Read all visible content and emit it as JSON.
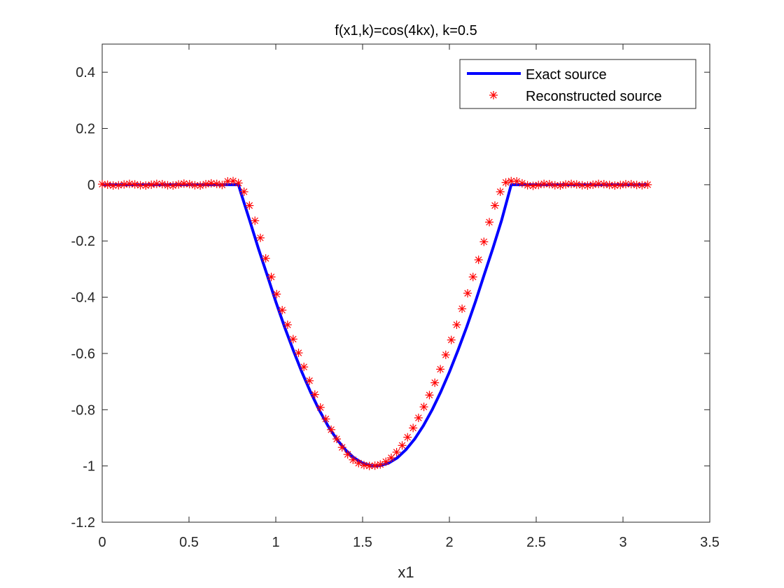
{
  "chart_data": {
    "type": "line",
    "title": "f(x1,k)=cos(4kx),   k=0.5",
    "xlabel": "x1",
    "ylabel": "",
    "xlim": [
      0,
      3.5
    ],
    "ylim": [
      -1.2,
      0.5
    ],
    "xticks": [
      "0",
      "0.5",
      "1",
      "1.5",
      "2",
      "2.5",
      "3",
      "3.5"
    ],
    "yticks": [
      "-1.2",
      "-1",
      "-0.8",
      "-0.6",
      "-0.4",
      "-0.2",
      "0",
      "0.2",
      "0.4"
    ],
    "grid": false,
    "legend_position": "top-right",
    "series": [
      {
        "name": "Exact source",
        "style": "solid-line",
        "color": "#0000ff",
        "x": [
          0,
          0.05,
          0.1,
          0.15,
          0.2,
          0.25,
          0.3,
          0.35,
          0.4,
          0.45,
          0.5,
          0.55,
          0.6,
          0.65,
          0.7,
          0.75,
          0.785,
          0.8,
          0.85,
          0.9,
          0.95,
          1.0,
          1.05,
          1.1,
          1.15,
          1.2,
          1.25,
          1.3,
          1.35,
          1.4,
          1.45,
          1.5,
          1.55,
          1.5708,
          1.6,
          1.65,
          1.7,
          1.75,
          1.8,
          1.85,
          1.9,
          1.95,
          2.0,
          2.05,
          2.1,
          2.15,
          2.2,
          2.25,
          2.3,
          2.356,
          2.4,
          2.45,
          2.5,
          2.55,
          2.6,
          2.65,
          2.7,
          2.75,
          2.8,
          2.85,
          2.9,
          2.95,
          3.0,
          3.05,
          3.1,
          3.1416
        ],
        "y": [
          0,
          0,
          0,
          0,
          0,
          0,
          0,
          0,
          0,
          0,
          0,
          0,
          0,
          0,
          0,
          0,
          0,
          -0.031,
          -0.128,
          -0.227,
          -0.321,
          -0.416,
          -0.505,
          -0.588,
          -0.666,
          -0.737,
          -0.801,
          -0.857,
          -0.904,
          -0.942,
          -0.971,
          -0.99,
          -0.999,
          -1.0,
          -0.999,
          -0.99,
          -0.971,
          -0.942,
          -0.904,
          -0.857,
          -0.801,
          -0.737,
          -0.666,
          -0.588,
          -0.505,
          -0.416,
          -0.321,
          -0.227,
          -0.128,
          0,
          0,
          0,
          0,
          0,
          0,
          0,
          0,
          0,
          0,
          0,
          0,
          0,
          0,
          0,
          0,
          0
        ]
      },
      {
        "name": "Reconstructed source",
        "style": "asterisk-markers",
        "color": "#ff0000",
        "x": [
          0.0,
          0.031,
          0.063,
          0.094,
          0.126,
          0.157,
          0.188,
          0.22,
          0.251,
          0.283,
          0.314,
          0.346,
          0.377,
          0.408,
          0.44,
          0.471,
          0.503,
          0.534,
          0.565,
          0.597,
          0.628,
          0.66,
          0.691,
          0.723,
          0.754,
          0.785,
          0.817,
          0.848,
          0.88,
          0.911,
          0.942,
          0.974,
          1.005,
          1.037,
          1.068,
          1.1,
          1.131,
          1.162,
          1.194,
          1.225,
          1.257,
          1.288,
          1.319,
          1.351,
          1.382,
          1.414,
          1.445,
          1.477,
          1.508,
          1.539,
          1.571,
          1.602,
          1.634,
          1.665,
          1.696,
          1.728,
          1.759,
          1.791,
          1.822,
          1.853,
          1.885,
          1.916,
          1.948,
          1.979,
          2.011,
          2.042,
          2.073,
          2.105,
          2.136,
          2.168,
          2.199,
          2.23,
          2.262,
          2.293,
          2.325,
          2.356,
          2.388,
          2.419,
          2.45,
          2.482,
          2.513,
          2.545,
          2.576,
          2.608,
          2.639,
          2.67,
          2.702,
          2.733,
          2.765,
          2.796,
          2.827,
          2.859,
          2.89,
          2.922,
          2.953,
          2.985,
          3.016,
          3.047,
          3.079,
          3.11,
          3.142
        ],
        "y": [
          0.002,
          0.0,
          -0.003,
          -0.002,
          0.001,
          0.003,
          0.001,
          -0.002,
          -0.003,
          0.0,
          0.003,
          0.002,
          -0.002,
          -0.003,
          0.001,
          0.004,
          0.002,
          -0.002,
          -0.003,
          0.002,
          0.005,
          0.003,
          -0.001,
          0.012,
          0.013,
          0.006,
          -0.025,
          -0.074,
          -0.128,
          -0.189,
          -0.262,
          -0.328,
          -0.389,
          -0.446,
          -0.498,
          -0.549,
          -0.598,
          -0.648,
          -0.697,
          -0.746,
          -0.792,
          -0.833,
          -0.871,
          -0.904,
          -0.934,
          -0.959,
          -0.978,
          -0.99,
          -0.997,
          -1.0,
          -0.999,
          -0.995,
          -0.985,
          -0.971,
          -0.951,
          -0.927,
          -0.898,
          -0.865,
          -0.829,
          -0.79,
          -0.748,
          -0.704,
          -0.656,
          -0.605,
          -0.552,
          -0.498,
          -0.441,
          -0.386,
          -0.328,
          -0.267,
          -0.203,
          -0.133,
          -0.074,
          -0.025,
          0.008,
          0.013,
          0.012,
          0.005,
          -0.002,
          -0.004,
          -0.001,
          0.003,
          0.002,
          -0.002,
          -0.003,
          0.001,
          0.003,
          0.001,
          -0.002,
          -0.003,
          0.0,
          0.003,
          0.002,
          -0.001,
          -0.003,
          -0.001,
          0.002,
          0.002,
          -0.001,
          -0.002,
          0.0
        ]
      }
    ]
  }
}
